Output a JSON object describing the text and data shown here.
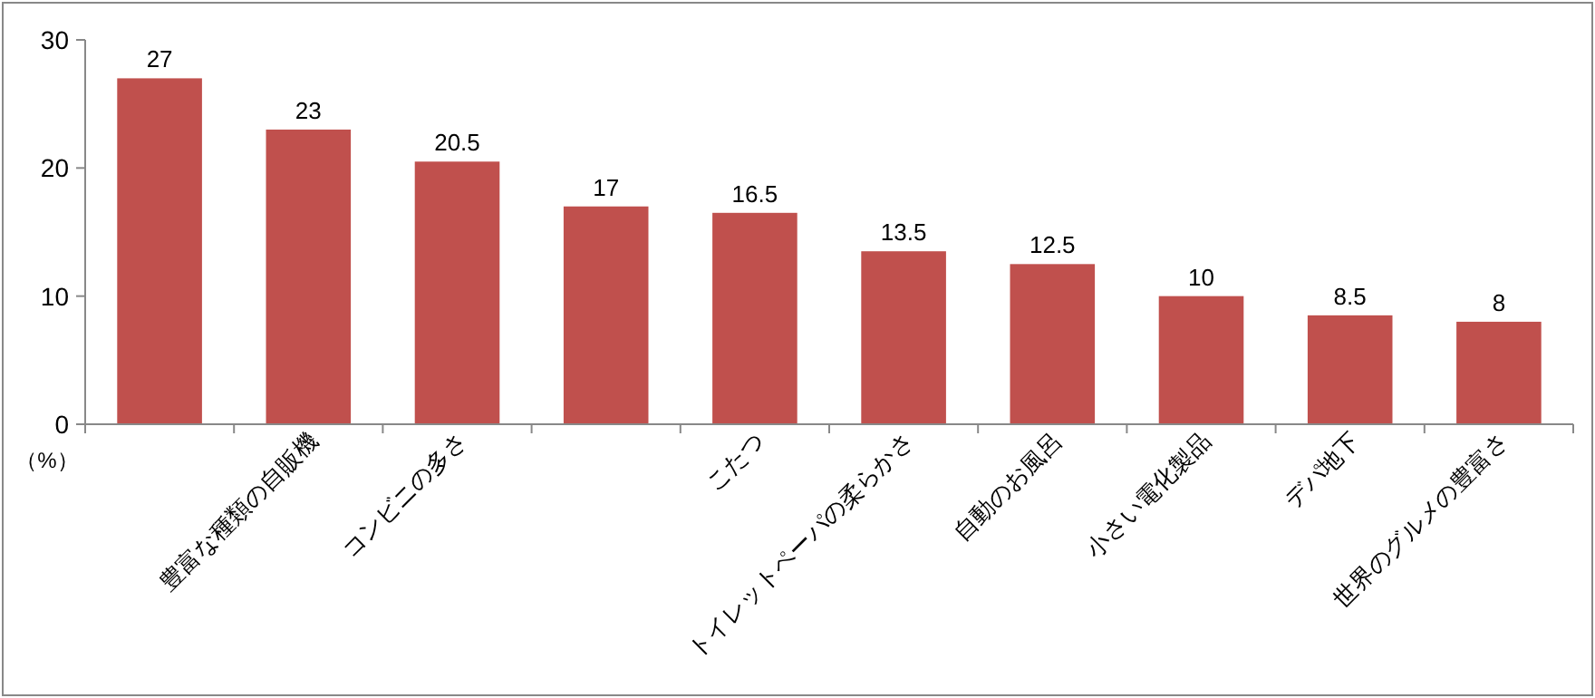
{
  "chart_data": {
    "type": "bar",
    "ylabel": "（%）",
    "categories": [
      null,
      "豊富な種類の自販機",
      "コンビニの多さ",
      null,
      "こたつ",
      "トイレットペーパの柔らかさ",
      "自動のお風呂",
      "小さい電化製品",
      "デパ地下",
      "世界のグルメの豊富さ"
    ],
    "values": [
      27,
      23,
      20.5,
      17,
      16.5,
      13.5,
      12.5,
      10,
      8.5,
      8
    ],
    "color": "#c0504d",
    "ylim": [
      0,
      30
    ],
    "yticks": [
      0,
      10,
      20,
      30
    ],
    "data_labels": true,
    "grid": false
  }
}
